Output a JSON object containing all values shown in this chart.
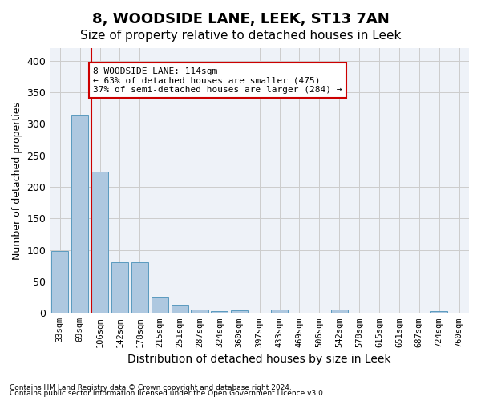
{
  "title": "8, WOODSIDE LANE, LEEK, ST13 7AN",
  "subtitle": "Size of property relative to detached houses in Leek",
  "xlabel": "Distribution of detached houses by size in Leek",
  "ylabel": "Number of detached properties",
  "footnote1": "Contains HM Land Registry data © Crown copyright and database right 2024.",
  "footnote2": "Contains public sector information licensed under the Open Government Licence v3.0.",
  "categories": [
    "33sqm",
    "69sqm",
    "106sqm",
    "142sqm",
    "178sqm",
    "215sqm",
    "251sqm",
    "287sqm",
    "324sqm",
    "360sqm",
    "397sqm",
    "433sqm",
    "469sqm",
    "506sqm",
    "542sqm",
    "578sqm",
    "615sqm",
    "651sqm",
    "687sqm",
    "724sqm",
    "760sqm"
  ],
  "values": [
    98,
    313,
    224,
    80,
    80,
    26,
    13,
    6,
    3,
    4,
    0,
    6,
    0,
    0,
    5,
    0,
    0,
    0,
    0,
    3,
    0
  ],
  "bar_color": "#aec8e0",
  "bar_edge_color": "#5a9abf",
  "grid_color": "#cccccc",
  "bg_color": "#eef2f8",
  "red_line_x": 2,
  "annotation_text": "8 WOODSIDE LANE: 114sqm\n← 63% of detached houses are smaller (475)\n37% of semi-detached houses are larger (284) →",
  "annotation_box_color": "#ffffff",
  "annotation_box_edge": "#cc0000",
  "annotation_text_color": "#000000",
  "red_line_color": "#cc0000",
  "ylim": [
    0,
    420
  ],
  "title_fontsize": 13,
  "subtitle_fontsize": 11
}
